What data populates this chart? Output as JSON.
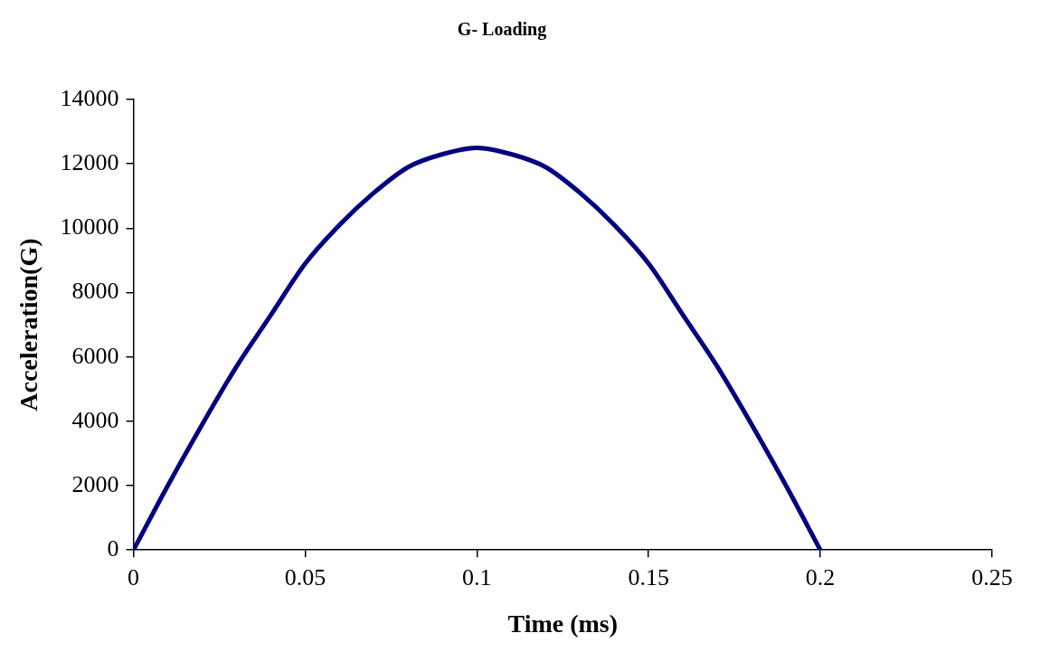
{
  "chart_data": {
    "type": "line",
    "title": "G- Loading",
    "xlabel": "Time (ms)",
    "ylabel": "Acceleration(G)",
    "x": [
      0,
      0.01,
      0.02,
      0.03,
      0.04,
      0.05,
      0.06,
      0.07,
      0.08,
      0.09,
      0.1,
      0.11,
      0.12,
      0.13,
      0.14,
      0.15,
      0.16,
      0.17,
      0.18,
      0.19,
      0.2
    ],
    "series": [
      {
        "color": "#000080",
        "values": [
          0,
          2000,
          3900,
          5700,
          7300,
          8900,
          10100,
          11100,
          11900,
          12300,
          12500,
          12300,
          11900,
          11100,
          10100,
          8900,
          7300,
          5700,
          3900,
          2000,
          0
        ]
      }
    ],
    "xlim": [
      0,
      0.25
    ],
    "xticks": [
      0,
      0.05,
      0.1,
      0.15,
      0.2,
      0.25
    ],
    "ylim": [
      0,
      14000
    ],
    "yticks": [
      0,
      2000,
      4000,
      6000,
      8000,
      10000,
      12000,
      14000
    ],
    "grid": false,
    "legend": false,
    "marker": "none",
    "line_style": "solid"
  }
}
